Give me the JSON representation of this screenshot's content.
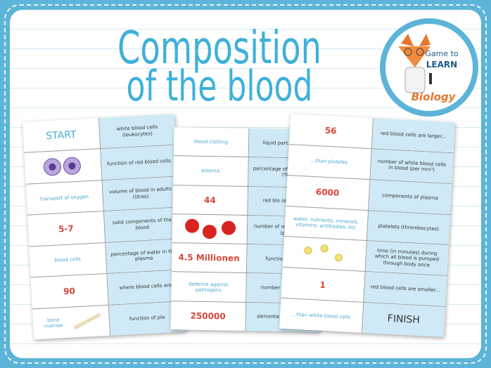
{
  "title": {
    "line1": "Composition",
    "line2": "of the blood"
  },
  "logo": {
    "line1": "Game to",
    "line2": "LEARN",
    "subject": "Biology"
  },
  "sheets": [
    {
      "rows": [
        {
          "left": "START",
          "right": "white blood cells (leukocytes)"
        },
        {
          "right": "function of red blood cells"
        },
        {
          "left": "transport of oxygen",
          "right": "volume of blood in adults (litres)"
        },
        {
          "left": "5-7",
          "right": "solid components of the blood"
        },
        {
          "left": "blood cells",
          "right": "percentage of water in the plasma"
        },
        {
          "left": "90",
          "right": "where blood cells are"
        },
        {
          "left": "bone marrow",
          "right": "function of pla"
        }
      ]
    },
    {
      "rows": [
        {
          "left": "blood clotting",
          "right": "liquid part of blood"
        },
        {
          "left": "plasma",
          "right": "percentage of blo in blood (%"
        },
        {
          "left": "44",
          "right": "red blo (erythrocy"
        },
        {
          "right": "number of red b in blood (pe"
        },
        {
          "left": "4.5 Millionen",
          "right": "function of whi"
        },
        {
          "left": "defence against pathogens",
          "right": "number o in blood"
        },
        {
          "left": "250000",
          "right": "percenta in blood (%"
        }
      ]
    },
    {
      "rows": [
        {
          "left": "56",
          "right": "red blood cells are larger..."
        },
        {
          "left": "...than plateles",
          "right": "number of white blood cells in blood (per mm³)"
        },
        {
          "left": "6000",
          "right": "components of plasma"
        },
        {
          "left": "water, nutrients, minerals, vitamins, antibodies, etc",
          "right": "platelets (thrombocytes)"
        },
        {
          "right": "time (in minutes) during which all blood is pumped through body once"
        },
        {
          "left": "1",
          "right": "red blood cells are smaller..."
        },
        {
          "left": "...than white blood cells",
          "right": "FINISH"
        }
      ]
    }
  ]
}
